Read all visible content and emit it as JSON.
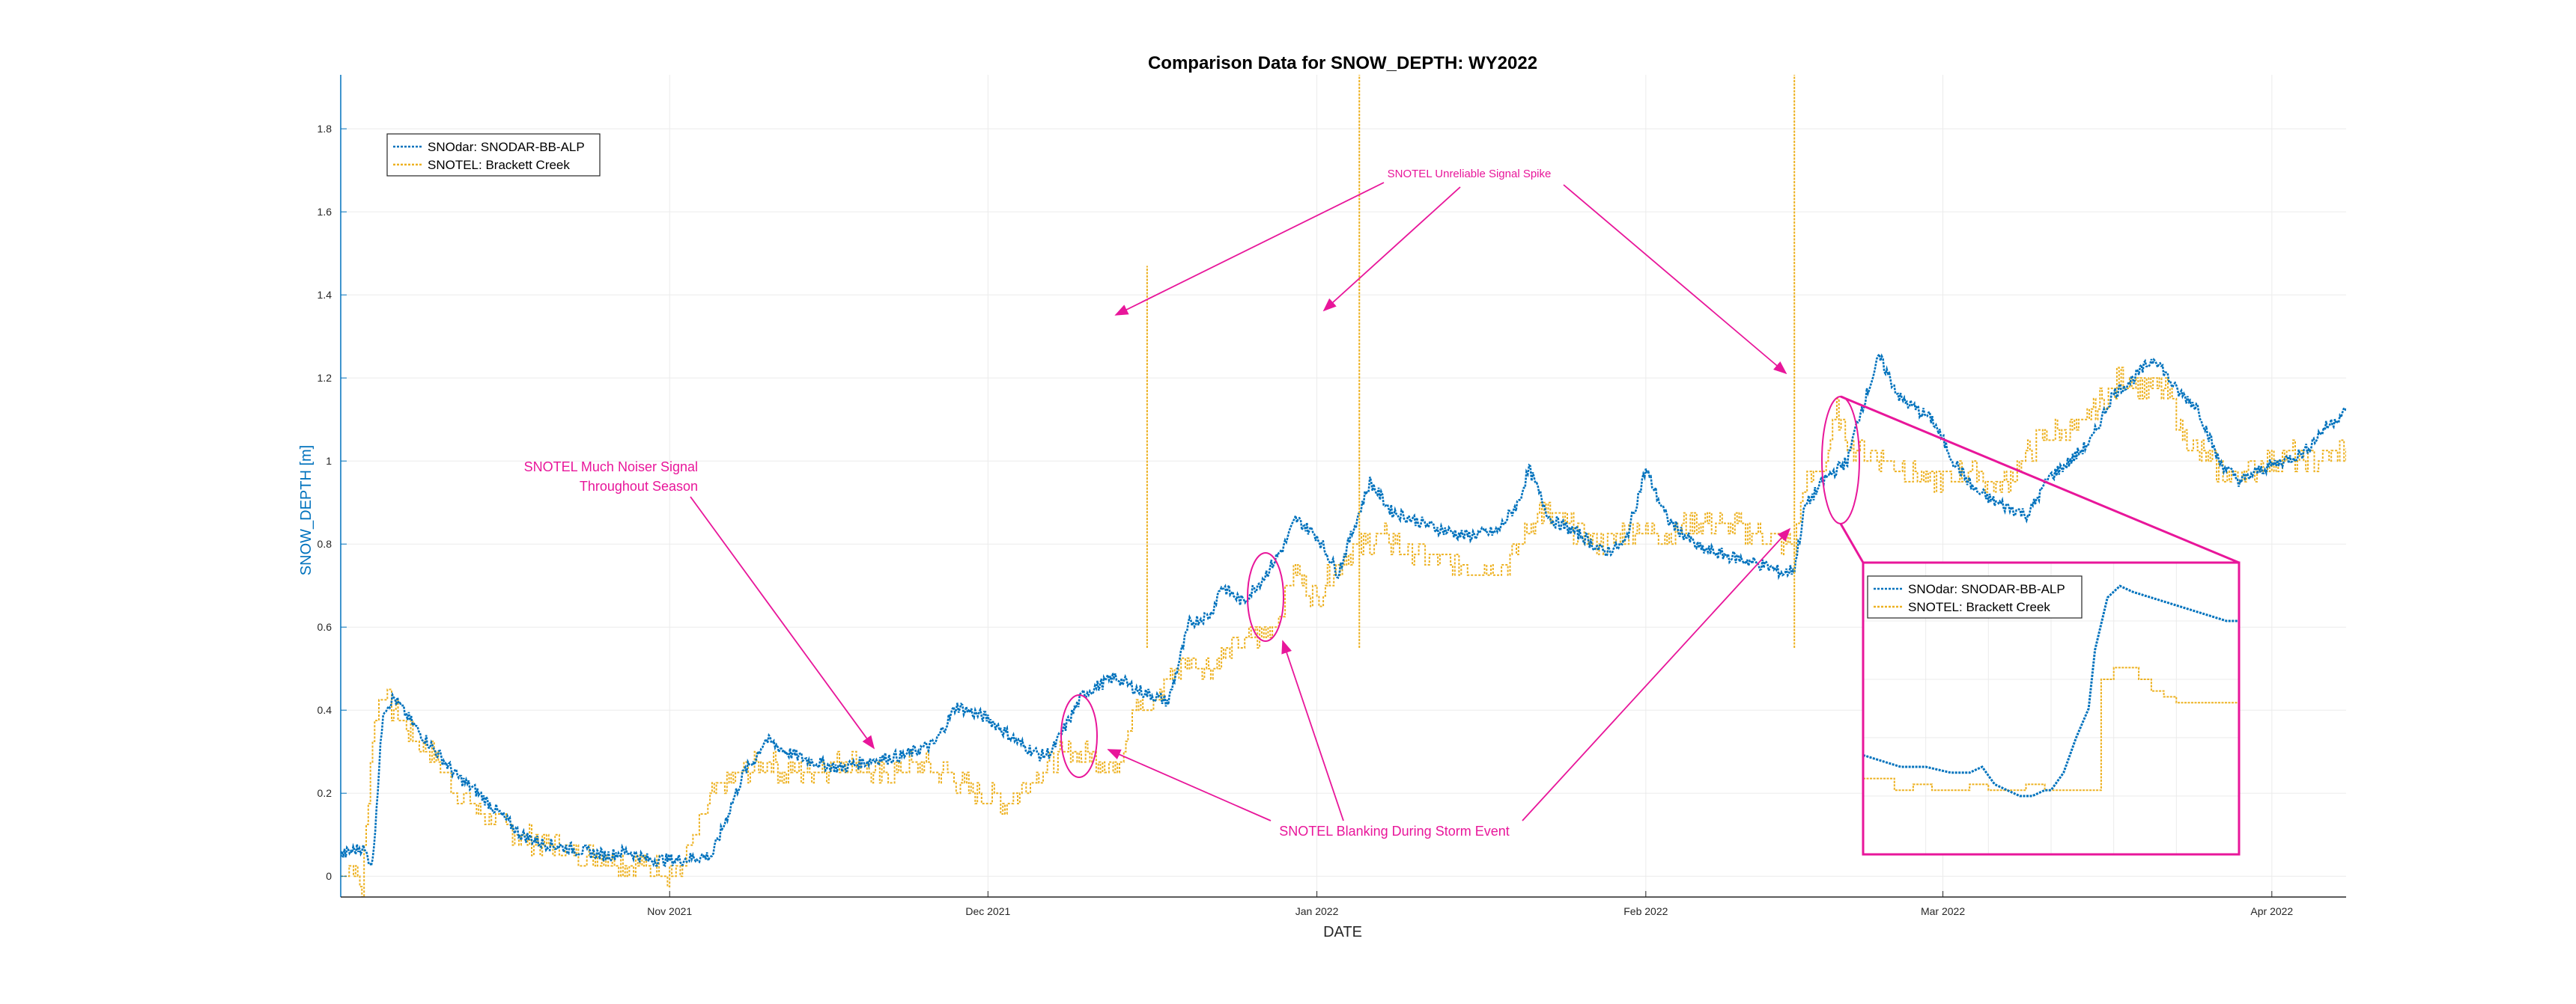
{
  "colors": {
    "snodar": "#0072bd",
    "snotel": "#edb120",
    "annotation": "#e8169a",
    "grid": "#ebebeb",
    "axis": "#262626",
    "yaxis": "#0072bd"
  },
  "chart_data": {
    "type": "line",
    "title": "Comparison Data for SNOW_DEPTH: WY2022",
    "xlabel": "DATE",
    "ylabel": "SNOW_DEPTH [m]",
    "xlim": [
      "2021-10-01",
      "2022-04-08"
    ],
    "ylim": [
      -0.05,
      1.93
    ],
    "yticks": [
      0,
      0.2,
      0.4,
      0.6,
      0.8,
      1,
      1.2,
      1.4,
      1.6,
      1.8
    ],
    "ytick_labels": [
      "0",
      "0.2",
      "0.4",
      "0.6",
      "0.8",
      "1",
      "1.2",
      "1.4",
      "1.6",
      "1.8"
    ],
    "xticks": [
      "2021-11-01",
      "2021-12-01",
      "2022-01-01",
      "2022-02-01",
      "2022-03-01",
      "2022-04-01"
    ],
    "xtick_labels": [
      "Nov 2021",
      "Dec 2021",
      "Jan 2022",
      "Feb 2022",
      "Mar 2022",
      "Apr 2022"
    ],
    "grid": true,
    "legend_position": "top-left",
    "series": [
      {
        "name": "SNOdar: SNODAR-BB-ALP",
        "color": "#0072bd",
        "x": [
          "2021-10-01",
          "2021-10-03",
          "2021-10-04",
          "2021-10-05",
          "2021-10-06",
          "2021-10-08",
          "2021-10-10",
          "2021-10-12",
          "2021-10-14",
          "2021-10-16",
          "2021-10-18",
          "2021-10-20",
          "2021-10-22",
          "2021-10-24",
          "2021-10-26",
          "2021-10-28",
          "2021-10-30",
          "2021-11-02",
          "2021-11-05",
          "2021-11-08",
          "2021-11-09",
          "2021-11-10",
          "2021-11-12",
          "2021-11-14",
          "2021-11-17",
          "2021-11-20",
          "2021-11-23",
          "2021-11-26",
          "2021-11-28",
          "2021-12-01",
          "2021-12-04",
          "2021-12-06",
          "2021-12-07",
          "2021-12-10",
          "2021-12-13",
          "2021-12-15",
          "2021-12-16",
          "2021-12-18",
          "2021-12-20",
          "2021-12-22",
          "2021-12-23",
          "2021-12-25",
          "2021-12-27",
          "2021-12-29",
          "2021-12-30",
          "2022-01-01",
          "2022-01-03",
          "2022-01-06",
          "2022-01-08",
          "2022-01-12",
          "2022-01-15",
          "2022-01-18",
          "2022-01-20",
          "2022-01-21",
          "2022-01-23",
          "2022-01-26",
          "2022-01-28",
          "2022-01-30",
          "2022-02-01",
          "2022-02-03",
          "2022-02-06",
          "2022-02-09",
          "2022-02-12",
          "2022-02-14",
          "2022-02-15",
          "2022-02-16",
          "2022-02-18",
          "2022-02-20",
          "2022-02-21",
          "2022-02-23",
          "2022-02-25",
          "2022-02-28",
          "2022-03-02",
          "2022-03-04",
          "2022-03-06",
          "2022-03-09",
          "2022-03-11",
          "2022-03-13",
          "2022-03-15",
          "2022-03-17",
          "2022-03-19",
          "2022-03-21",
          "2022-03-23",
          "2022-03-25",
          "2022-03-27",
          "2022-03-29",
          "2022-03-31",
          "2022-04-02",
          "2022-04-04",
          "2022-04-06",
          "2022-04-08"
        ],
        "y": [
          0.05,
          0.07,
          0.03,
          0.4,
          0.43,
          0.36,
          0.3,
          0.24,
          0.2,
          0.15,
          0.1,
          0.08,
          0.07,
          0.06,
          0.05,
          0.06,
          0.04,
          0.04,
          0.05,
          0.25,
          0.28,
          0.33,
          0.3,
          0.28,
          0.26,
          0.28,
          0.29,
          0.32,
          0.41,
          0.38,
          0.32,
          0.29,
          0.3,
          0.44,
          0.48,
          0.45,
          0.44,
          0.42,
          0.61,
          0.63,
          0.7,
          0.66,
          0.72,
          0.8,
          0.86,
          0.82,
          0.73,
          0.95,
          0.88,
          0.84,
          0.82,
          0.83,
          0.9,
          0.98,
          0.86,
          0.82,
          0.78,
          0.8,
          0.98,
          0.86,
          0.79,
          0.77,
          0.75,
          0.73,
          0.74,
          0.89,
          0.96,
          1.0,
          1.1,
          1.25,
          1.15,
          1.1,
          1.0,
          0.93,
          0.9,
          0.87,
          0.96,
          1.0,
          1.05,
          1.16,
          1.2,
          1.25,
          1.17,
          1.13,
          1.0,
          0.95,
          0.98,
          1.0,
          1.02,
          1.08,
          1.12
        ]
      },
      {
        "name": "SNOTEL: Brackett Creek",
        "color": "#edb120",
        "x": [
          "2021-10-01",
          "2021-10-02",
          "2021-10-03",
          "2021-10-04",
          "2021-10-05",
          "2021-10-06",
          "2021-10-08",
          "2021-10-10",
          "2021-10-12",
          "2021-10-14",
          "2021-10-16",
          "2021-10-18",
          "2021-10-20",
          "2021-10-22",
          "2021-10-24",
          "2021-10-26",
          "2021-10-28",
          "2021-10-30",
          "2021-11-02",
          "2021-11-05",
          "2021-11-08",
          "2021-11-10",
          "2021-11-12",
          "2021-11-15",
          "2021-11-18",
          "2021-11-21",
          "2021-11-24",
          "2021-11-27",
          "2021-11-30",
          "2021-12-03",
          "2021-12-06",
          "2021-12-09",
          "2021-12-12",
          "2021-12-13",
          "2021-12-14",
          "2021-12-15",
          "2021-12-16",
          "2021-12-18",
          "2021-12-20",
          "2021-12-22",
          "2021-12-24",
          "2021-12-26",
          "2021-12-28",
          "2021-12-29",
          "2021-12-30",
          "2022-01-01",
          "2022-01-02",
          "2022-01-04",
          "2022-01-07",
          "2022-01-10",
          "2022-01-13",
          "2022-01-16",
          "2022-01-19",
          "2022-01-22",
          "2022-01-25",
          "2022-01-28",
          "2022-01-31",
          "2022-02-03",
          "2022-02-06",
          "2022-02-09",
          "2022-02-12",
          "2022-02-14",
          "2022-02-15",
          "2022-02-16",
          "2022-02-18",
          "2022-02-19",
          "2022-02-20",
          "2022-02-22",
          "2022-02-24",
          "2022-02-26",
          "2022-02-28",
          "2022-03-02",
          "2022-03-04",
          "2022-03-06",
          "2022-03-08",
          "2022-03-10",
          "2022-03-12",
          "2022-03-14",
          "2022-03-16",
          "2022-03-18",
          "2022-03-20",
          "2022-03-22",
          "2022-03-24",
          "2022-03-26",
          "2022-03-28",
          "2022-03-30",
          "2022-04-01",
          "2022-04-03",
          "2022-04-05",
          "2022-04-08"
        ],
        "y": [
          0.0,
          0.03,
          -0.03,
          0.35,
          0.45,
          0.4,
          0.33,
          0.28,
          0.2,
          0.16,
          0.12,
          0.1,
          0.08,
          0.07,
          0.05,
          0.05,
          0.03,
          0.02,
          0.01,
          0.2,
          0.25,
          0.28,
          0.25,
          0.26,
          0.28,
          0.24,
          0.27,
          0.25,
          0.2,
          0.18,
          0.26,
          0.3,
          0.28,
          0.25,
          0.35,
          0.43,
          0.38,
          0.48,
          0.52,
          0.5,
          0.55,
          0.57,
          0.6,
          0.68,
          0.74,
          0.66,
          0.72,
          0.78,
          0.82,
          0.78,
          0.76,
          0.74,
          0.75,
          0.88,
          0.84,
          0.8,
          0.84,
          0.82,
          0.86,
          0.84,
          0.82,
          0.8,
          0.8,
          0.94,
          1.0,
          1.12,
          1.05,
          1.02,
          1.0,
          0.97,
          0.95,
          0.96,
          0.98,
          0.93,
          0.98,
          1.05,
          1.07,
          1.08,
          1.15,
          1.2,
          1.18,
          1.17,
          1.05,
          1.0,
          0.96,
          0.98,
          1.0,
          1.01,
          1.0,
          1.03
        ]
      }
    ],
    "snotel_spikes": [
      {
        "x": "2021-12-16",
        "y": 1.47
      },
      {
        "x": "2022-01-05",
        "y": 1.93
      },
      {
        "x": "2022-02-15",
        "y": 1.93
      }
    ],
    "annotations": [
      {
        "id": "noise",
        "text": [
          "SNOTEL Much Noiser Signal",
          "Throughout Season"
        ]
      },
      {
        "id": "spike",
        "text": [
          "SNOTEL Unreliable Signal Spike"
        ]
      },
      {
        "id": "blank",
        "text": [
          "SNOTEL Blanking During Storm Event"
        ]
      }
    ],
    "inset": {
      "xlim": [
        "2022-02-18",
        "2022-02-24"
      ],
      "ylim": [
        0.8,
        1.3
      ],
      "series": [
        {
          "name": "SNOdar: SNODAR-BB-ALP",
          "x": [
            0,
            0.3,
            0.6,
            1.0,
            1.4,
            1.7,
            1.9,
            2.1,
            2.3,
            2.5,
            2.7,
            2.9,
            3.0,
            3.2,
            3.4,
            3.6,
            3.7,
            3.9,
            4.1,
            4.3,
            4.6,
            4.9,
            5.2,
            5.5,
            5.8,
            6.0
          ],
          "y": [
            0.97,
            0.96,
            0.95,
            0.95,
            0.94,
            0.94,
            0.95,
            0.92,
            0.91,
            0.9,
            0.9,
            0.91,
            0.91,
            0.94,
            1.0,
            1.05,
            1.15,
            1.24,
            1.26,
            1.25,
            1.24,
            1.23,
            1.22,
            1.21,
            1.2,
            1.2
          ]
        },
        {
          "name": "SNOTEL: Brackett Creek",
          "x": [
            0,
            0.2,
            0.5,
            0.8,
            1.1,
            1.4,
            1.7,
            2.0,
            2.3,
            2.6,
            2.9,
            3.2,
            3.5,
            3.8,
            4.0,
            4.2,
            4.4,
            4.6,
            4.8,
            5.0,
            5.3,
            5.6,
            6.0
          ],
          "y": [
            0.93,
            0.93,
            0.91,
            0.92,
            0.91,
            0.91,
            0.92,
            0.91,
            0.91,
            0.92,
            0.91,
            0.91,
            0.91,
            1.1,
            1.12,
            1.12,
            1.1,
            1.08,
            1.07,
            1.06,
            1.06,
            1.06,
            1.06
          ]
        }
      ]
    }
  }
}
